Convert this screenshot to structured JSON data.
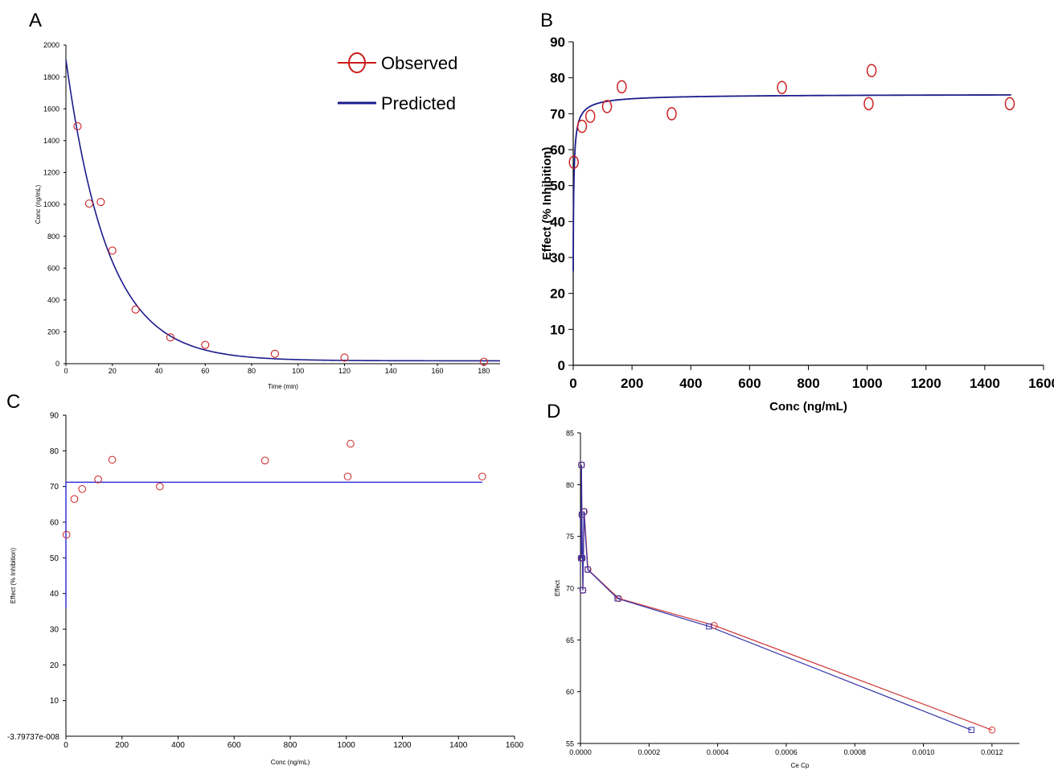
{
  "panels": {
    "A": {
      "letter": "A"
    },
    "B": {
      "letter": "B"
    },
    "C": {
      "letter": "C"
    },
    "D": {
      "letter": "D"
    }
  },
  "chart_data": [
    {
      "id": "A",
      "type": "line",
      "xlabel": "Time (min)",
      "ylabel": "Conc (ng/mL)",
      "xlim": [
        0,
        187
      ],
      "ylim": [
        0,
        2000
      ],
      "xticks": [
        0,
        20,
        40,
        60,
        80,
        100,
        120,
        140,
        160,
        180
      ],
      "yticks": [
        0,
        200,
        400,
        600,
        800,
        1000,
        1200,
        1400,
        1600,
        1800,
        2000
      ],
      "legend": {
        "position": "top-right",
        "entries": [
          "Observed",
          "Predicted"
        ]
      },
      "series": [
        {
          "name": "Observed",
          "kind": "scatter",
          "color": "#cc2222",
          "x": [
            5,
            10,
            15,
            20,
            30,
            45,
            60,
            90,
            120,
            180
          ],
          "y": [
            1490,
            1005,
            1015,
            710,
            340,
            165,
            118,
            62,
            38,
            12
          ]
        },
        {
          "name": "Predicted",
          "kind": "line",
          "color": "#1c1c8c",
          "model": {
            "A": 1890,
            "k": 0.0555,
            "baseline": 18
          }
        }
      ]
    },
    {
      "id": "B",
      "type": "line",
      "xlabel": "Conc (ng/mL)",
      "ylabel": "Effect (% Inhibition)",
      "xlim": [
        0,
        1600
      ],
      "ylim": [
        0,
        90
      ],
      "xticks": [
        0,
        200,
        400,
        600,
        800,
        1000,
        1200,
        1400,
        1600
      ],
      "yticks": [
        0,
        10,
        20,
        30,
        40,
        50,
        60,
        70,
        80,
        90
      ],
      "series": [
        {
          "name": "",
          "kind": "scatter",
          "color": "#cc2222",
          "x": [
            2,
            30,
            58,
            115,
            165,
            335,
            710,
            1005,
            1015,
            1485
          ],
          "y": [
            56.5,
            66.5,
            69.3,
            72,
            77.5,
            70,
            77.3,
            72.8,
            82,
            72.8
          ]
        },
        {
          "name": "",
          "kind": "line",
          "color": "#1c1c8c",
          "model": {
            "E0": 25,
            "Emax": 50.5,
            "EC50": 2.2,
            "n": 0.8
          }
        }
      ]
    },
    {
      "id": "C",
      "type": "line",
      "xlabel": "Conc (ng/mL)",
      "ylabel": "Effect (% Inhibition)",
      "xlim": [
        0,
        1600
      ],
      "ylim": [
        0,
        90
      ],
      "xticks": [
        0,
        200,
        400,
        600,
        800,
        1000,
        1200,
        1400,
        1600
      ],
      "yticks": [
        10,
        20,
        30,
        40,
        50,
        60,
        70,
        80,
        90
      ],
      "ytick_labels": [
        "10",
        "20",
        "30",
        "40",
        "50",
        "60",
        "70",
        "80",
        "90"
      ],
      "y0_label": "-3.79737e-008",
      "series": [
        {
          "name": "",
          "kind": "scatter",
          "color": "#cc2222",
          "x": [
            2,
            30,
            58,
            115,
            165,
            335,
            710,
            1005,
            1015,
            1485
          ],
          "y": [
            56.5,
            66.5,
            69.3,
            72,
            77.5,
            70,
            77.3,
            72.8,
            82,
            72.8
          ]
        },
        {
          "name": "",
          "kind": "line",
          "color": "#3333dd",
          "x": [
            0,
            0,
            10,
            1485
          ],
          "y": [
            36,
            71.2,
            71.2,
            71.2
          ]
        }
      ]
    },
    {
      "id": "D",
      "type": "line",
      "xlabel": "Ce Cp",
      "ylabel": "Effect",
      "xlim": [
        0,
        0.00128
      ],
      "ylim": [
        55,
        85
      ],
      "xticks": [
        0,
        0.0002,
        0.0004,
        0.0006,
        0.0008,
        0.001,
        0.0012
      ],
      "xtick_labels": [
        "0.0000",
        "0.0002",
        "0.0004",
        "0.0006",
        "0.0008",
        "0.0010",
        "0.0012"
      ],
      "yticks": [
        55,
        60,
        65,
        70,
        75,
        80,
        85
      ],
      "series": [
        {
          "name": "",
          "kind": "line-circle",
          "color": "#d03a3a",
          "x": [
            0.0012,
            0.00039,
            0.000112,
            2.2e-05,
            1.1e-05,
            7e-06,
            4e-06,
            5e-06,
            3e-06,
            2e-06
          ],
          "y": [
            56.3,
            66.4,
            69.0,
            71.8,
            77.4,
            69.8,
            77.1,
            72.9,
            81.9,
            72.9
          ]
        },
        {
          "name": "",
          "kind": "line-square",
          "color": "#3333aa",
          "x": [
            0.00114,
            0.000375,
            0.000108,
            2.1e-05,
            1e-05,
            7e-06,
            4e-06,
            5e-06,
            3e-06,
            2e-06
          ],
          "y": [
            56.3,
            66.3,
            69.0,
            71.8,
            77.4,
            69.8,
            77.1,
            72.9,
            81.9,
            72.9
          ]
        }
      ]
    }
  ]
}
